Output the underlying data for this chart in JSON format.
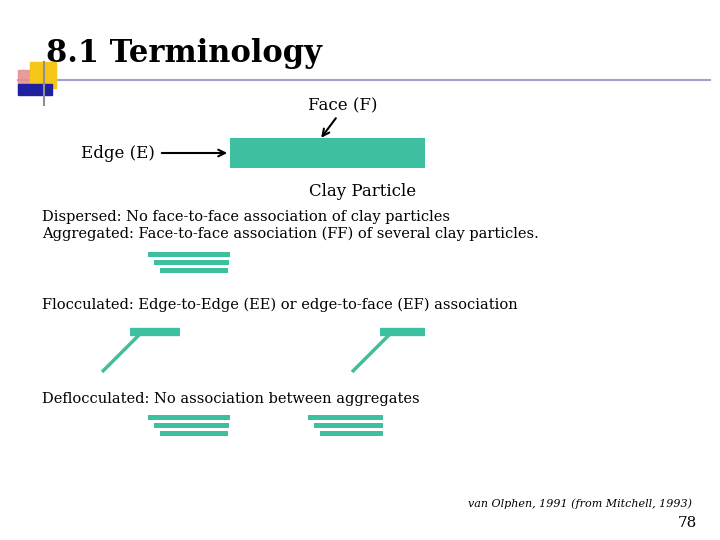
{
  "title": "8.1 Terminology",
  "background": "#FFFFFF",
  "clay_particle_label": "Clay Particle",
  "face_label": "Face (F)",
  "edge_label": "Edge (E)",
  "text_dispersed": "Dispersed: No face-to-face association of clay particles",
  "text_aggregated": "Aggregated: Face-to-face association (FF) of several clay particles.",
  "text_flocculated": "Flocculated: Edge-to-Edge (EE) or edge-to-face (EF) association",
  "text_deflocculated": "Deflocculated: No association between aggregates",
  "text_citation": "van Olphen, 1991 (from Mitchell, 1993)",
  "page_number": "78",
  "bar_color": "#3DBFA0",
  "accent_gold": "#F5C518",
  "accent_pink": "#E89090",
  "accent_blue": "#2020A0",
  "accent_gray": "#909090",
  "accent_line": "#A0A0CC"
}
